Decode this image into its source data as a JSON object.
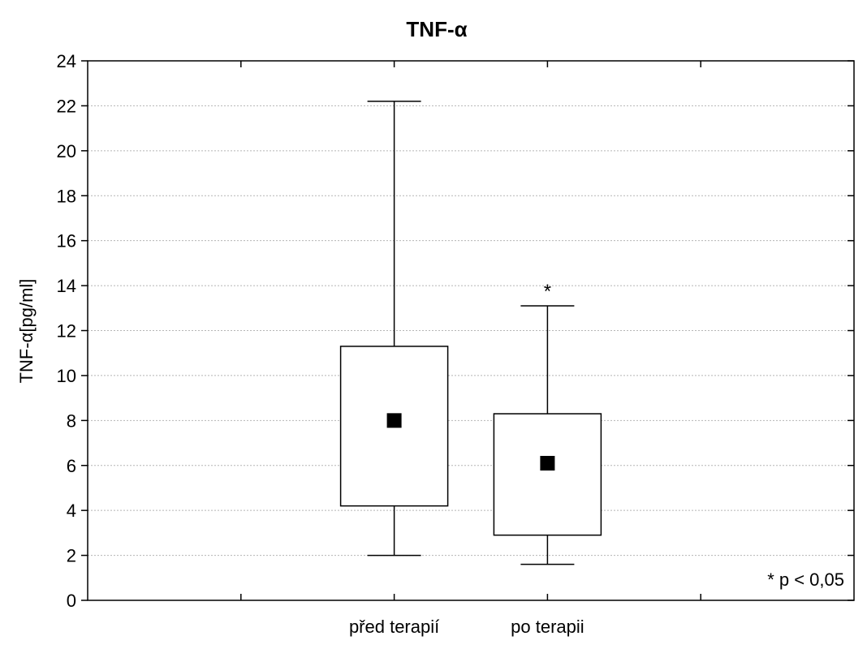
{
  "chart_data": {
    "type": "box",
    "title": "TNF-α",
    "xlabel": "",
    "ylabel": "TNF-α[pg/ml]",
    "ylim": [
      0,
      24
    ],
    "yticks": [
      0,
      2,
      4,
      6,
      8,
      10,
      12,
      14,
      16,
      18,
      20,
      22,
      24
    ],
    "grid": true,
    "categories": [
      "před terapií",
      "po terapii"
    ],
    "boxes": [
      {
        "category": "před terapií",
        "whisker_low": 2.0,
        "q1": 4.2,
        "center": 8.0,
        "q3": 11.3,
        "whisker_high": 22.2,
        "marker": ""
      },
      {
        "category": "po terapii",
        "whisker_low": 1.6,
        "q1": 2.9,
        "center": 6.1,
        "q3": 8.3,
        "whisker_high": 13.1,
        "marker": "*"
      }
    ],
    "annotation": "* p < 0,05"
  }
}
